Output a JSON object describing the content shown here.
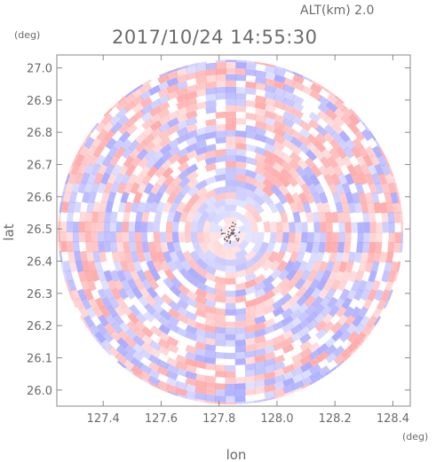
{
  "header": {
    "altitude_label": "ALT(km) 2.0",
    "timestamp": "2017/10/24 14:55:30"
  },
  "chart_data": {
    "type": "heatmap",
    "title": "2017/10/24 14:55:30",
    "annotation": "ALT(km) 2.0",
    "xlabel": "lon",
    "ylabel": "lat",
    "x_unit": "(deg)",
    "y_unit": "(deg)",
    "xlim": [
      127.24,
      128.46
    ],
    "ylim": [
      25.95,
      27.04
    ],
    "x_ticks": [
      127.4,
      127.6,
      127.8,
      128.0,
      128.2,
      128.4
    ],
    "y_ticks": [
      26.0,
      26.1,
      26.2,
      26.3,
      26.4,
      26.5,
      26.6,
      26.7,
      26.8,
      26.9,
      27.0
    ],
    "x_tick_labels": [
      "127.4",
      "127.6",
      "127.8",
      "128.0",
      "128.2",
      "128.4"
    ],
    "y_tick_labels": [
      "26.0",
      "26.1",
      "26.2",
      "26.3",
      "26.4",
      "26.5",
      "26.6",
      "26.7",
      "26.8",
      "26.9",
      "27.0"
    ],
    "center": {
      "lon": 127.84,
      "lat": 26.49
    },
    "radius_deg_lat": 0.535,
    "colors": {
      "positive": "#ff9a9a",
      "negative": "#9a9aff",
      "neutral": "#ffffff",
      "frame": "#888888",
      "text": "#6a6a6a"
    },
    "grid": false
  }
}
